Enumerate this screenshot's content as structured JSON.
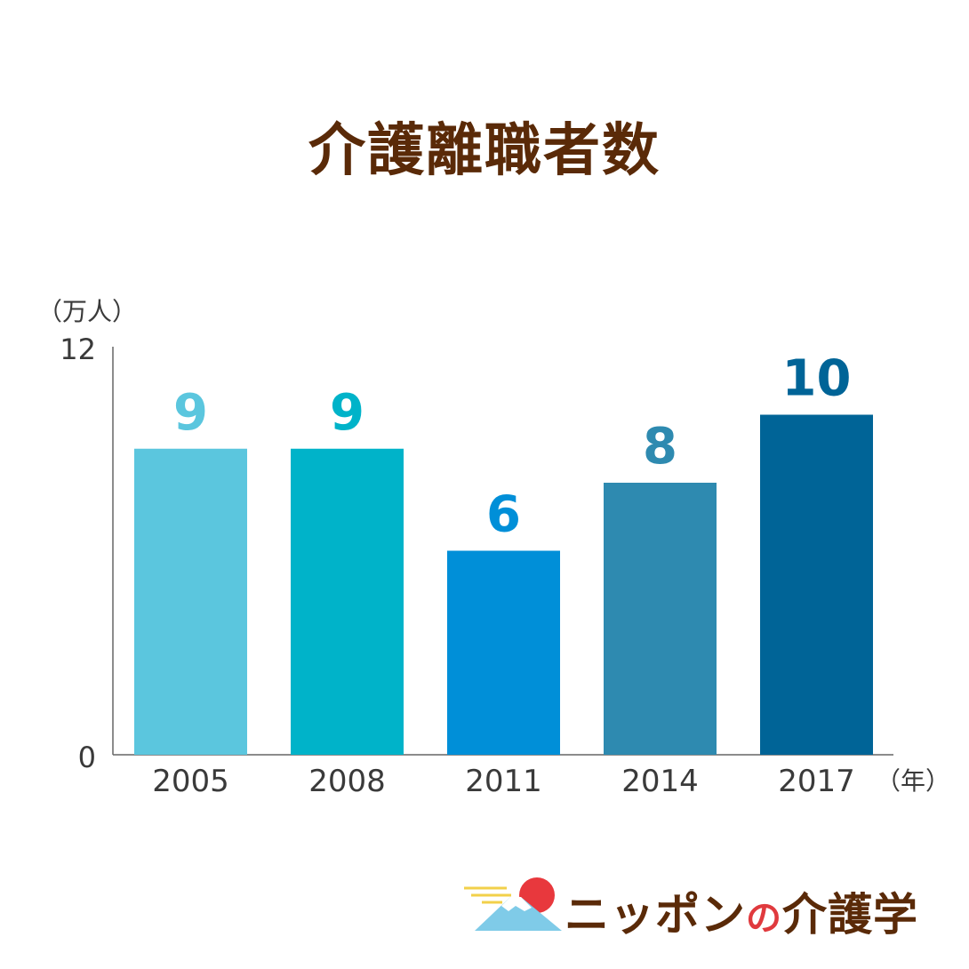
{
  "chart_data": {
    "type": "bar",
    "title": "介護離職者数",
    "ylabel": "（万人）",
    "xlabel": "（年）",
    "ylim": [
      0,
      12
    ],
    "yticks": [
      0,
      12
    ],
    "categories": [
      "2005",
      "2008",
      "2011",
      "2014",
      "2017"
    ],
    "values": [
      9,
      9,
      6,
      8,
      10
    ],
    "colors": [
      "#5bc6de",
      "#00b3c9",
      "#008fd8",
      "#2e8ab0",
      "#006497"
    ],
    "grid": false,
    "legend": "none"
  },
  "logo": {
    "text_a": "ニッポン",
    "text_b": "の",
    "text_c": "介護学"
  }
}
